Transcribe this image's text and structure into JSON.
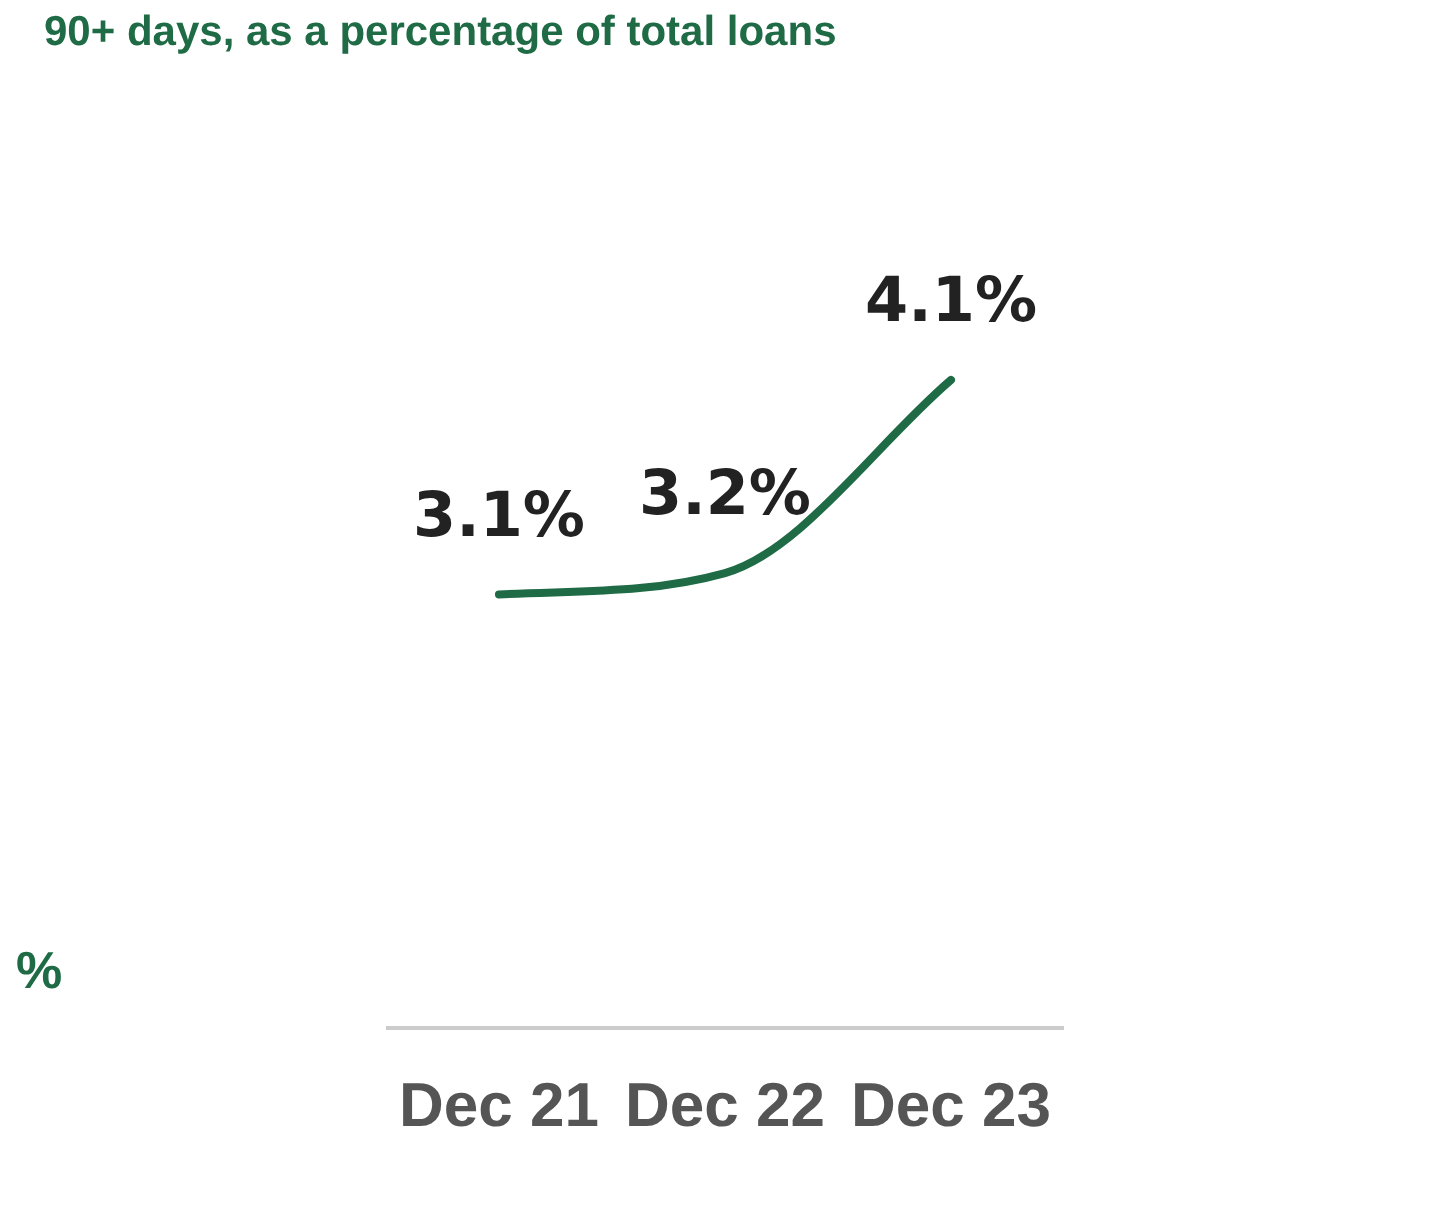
{
  "chart_data": {
    "type": "line",
    "title": "90+ days, as a percentage of total loans",
    "annotations": [
      "%"
    ],
    "categories": [
      "Dec 21",
      "Dec 22",
      "Dec 23"
    ],
    "series": [
      {
        "color": "#1e6b46",
        "values": [
          3.1,
          3.2,
          4.1
        ],
        "value_labels": [
          "3.1%",
          "3.2%",
          "4.1%"
        ]
      }
    ],
    "tick_labels": "x",
    "marker": "none",
    "line_style": "solid",
    "legend": false,
    "grid": false
  }
}
